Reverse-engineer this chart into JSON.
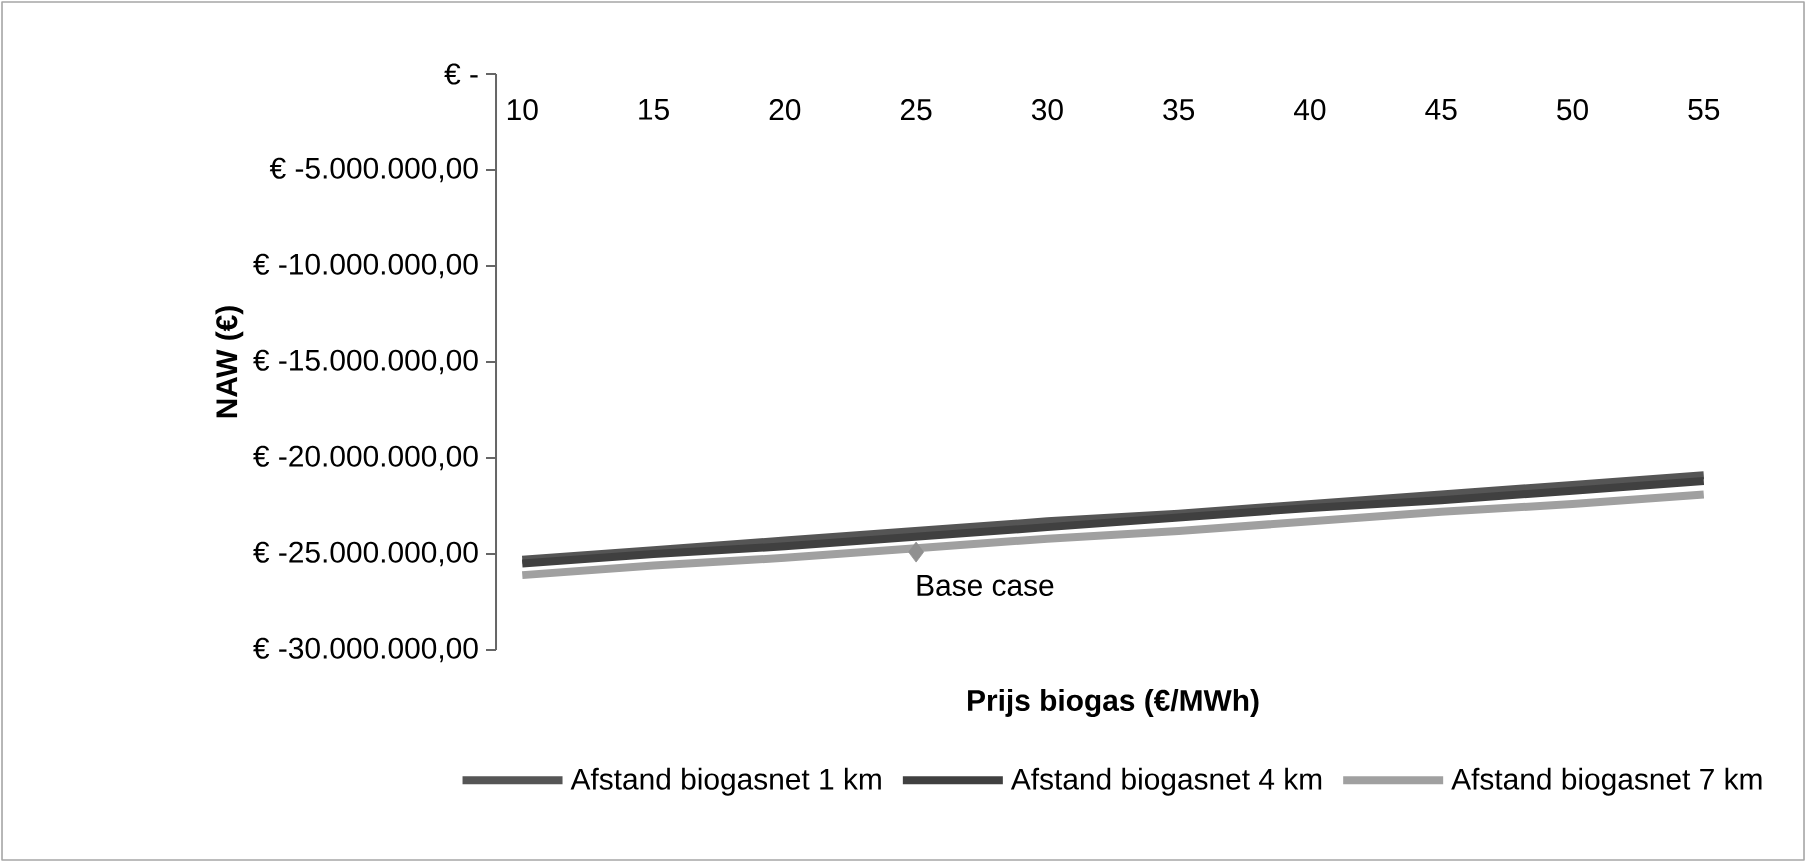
{
  "chart_data": {
    "type": "line",
    "xlabel": "Prijs biogas (€/MWh)",
    "ylabel": "NAW (€)",
    "categories": [
      "10",
      "15",
      "20",
      "25",
      "30",
      "35",
      "40",
      "45",
      "50",
      "55"
    ],
    "ylim": [
      -30000000,
      0
    ],
    "yticks": [
      {
        "value": 0,
        "label": "€ -"
      },
      {
        "value": -5000000,
        "label": "€ -5.000.000,00"
      },
      {
        "value": -10000000,
        "label": "€ -10.000.000,00"
      },
      {
        "value": -15000000,
        "label": "€ -15.000.000,00"
      },
      {
        "value": -20000000,
        "label": "€ -20.000.000,00"
      },
      {
        "value": -25000000,
        "label": "€ -25.000.000,00"
      },
      {
        "value": -30000000,
        "label": "€ -30.000.000,00"
      }
    ],
    "series": [
      {
        "name": "Afstand biogasnet 1 km",
        "color": "#555555",
        "values": [
          -25300000,
          -24800000,
          -24300000,
          -23800000,
          -23300000,
          -22900000,
          -22400000,
          -21900000,
          -21400000,
          -20900000
        ]
      },
      {
        "name": "Afstand biogasnet 4 km",
        "color": "#404040",
        "values": [
          -25500000,
          -25000000,
          -24600000,
          -24100000,
          -23600000,
          -23100000,
          -22600000,
          -22200000,
          -21700000,
          -21200000
        ]
      },
      {
        "name": "Afstand biogasnet 7 km",
        "color": "#a0a0a0",
        "values": [
          -26100000,
          -25600000,
          -25200000,
          -24700000,
          -24200000,
          -23800000,
          -23300000,
          -22800000,
          -22400000,
          -21900000
        ]
      },
      {
        "type": "scatter",
        "color": "#909090",
        "marker": "diamond",
        "x": [
          "25"
        ],
        "values": [
          -24900000
        ]
      }
    ],
    "annotations": [
      {
        "text": "Base case",
        "x": "25",
        "y": -24900000
      }
    ],
    "legend": "bottom",
    "grid": false,
    "marker": "none"
  }
}
